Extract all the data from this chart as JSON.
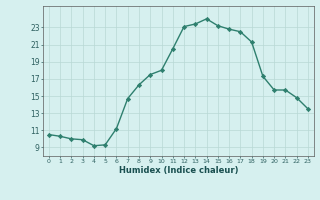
{
  "x": [
    0,
    1,
    2,
    3,
    4,
    5,
    6,
    7,
    8,
    9,
    10,
    11,
    12,
    13,
    14,
    15,
    16,
    17,
    18,
    19,
    20,
    21,
    22,
    23
  ],
  "y": [
    10.5,
    10.3,
    10.0,
    9.9,
    9.2,
    9.3,
    11.2,
    14.7,
    16.3,
    17.5,
    18.0,
    20.5,
    23.1,
    23.4,
    24.0,
    23.2,
    22.8,
    22.5,
    21.3,
    17.3,
    15.7,
    15.7,
    14.8,
    13.5
  ],
  "xlabel": "Humidex (Indice chaleur)",
  "xlim": [
    -0.5,
    23.5
  ],
  "ylim": [
    8.0,
    25.5
  ],
  "yticks": [
    9,
    11,
    13,
    15,
    17,
    19,
    21,
    23
  ],
  "xticks": [
    0,
    1,
    2,
    3,
    4,
    5,
    6,
    7,
    8,
    9,
    10,
    11,
    12,
    13,
    14,
    15,
    16,
    17,
    18,
    19,
    20,
    21,
    22,
    23
  ],
  "line_color": "#2e7f6e",
  "marker": "D",
  "marker_size": 2.2,
  "bg_color": "#d6f0ef",
  "grid_color": "#b8d8d5",
  "tick_label_color": "#2e6060",
  "xlabel_color": "#1a5050",
  "line_width": 1.0
}
